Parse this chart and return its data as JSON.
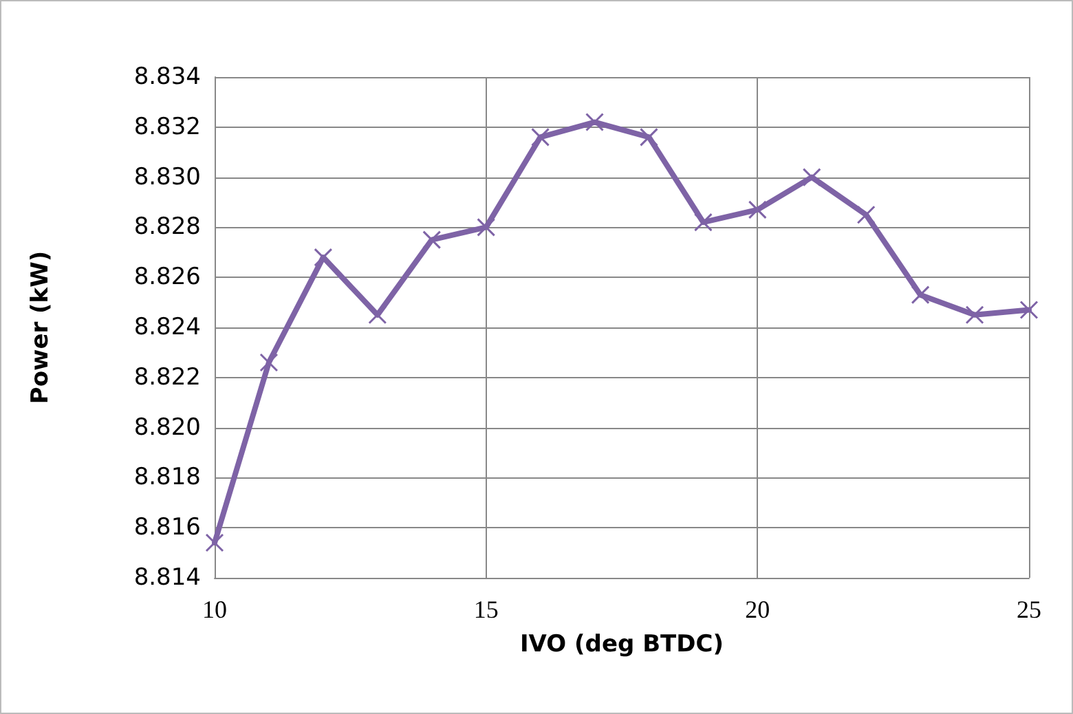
{
  "chart_data": {
    "type": "line",
    "xlabel": "IVO (deg BTDC)",
    "ylabel": "Power (kW)",
    "x": [
      10,
      11,
      12,
      13,
      14,
      15,
      16,
      17,
      18,
      19,
      20,
      21,
      22,
      23,
      24,
      25
    ],
    "series": [
      {
        "color": "#7e63a6",
        "values": [
          8.8154,
          8.8226,
          8.8268,
          8.8245,
          8.8275,
          8.828,
          8.8316,
          8.8322,
          8.8316,
          8.8282,
          8.8287,
          8.83,
          8.8285,
          8.8253,
          8.8245,
          8.8247
        ]
      }
    ],
    "xlim": [
      10,
      25
    ],
    "xticks": [
      10,
      15,
      20,
      25
    ],
    "ylim": [
      8.814,
      8.834
    ],
    "yticks": [
      8.814,
      8.816,
      8.818,
      {
        "value": 8.82,
        "label": "8.820"
      },
      8.822,
      8.824,
      8.826,
      8.828,
      {
        "value": 8.83,
        "label": "8.830"
      },
      8.832,
      8.834
    ],
    "grid": true,
    "marker": "cross",
    "line_style": "solid"
  }
}
